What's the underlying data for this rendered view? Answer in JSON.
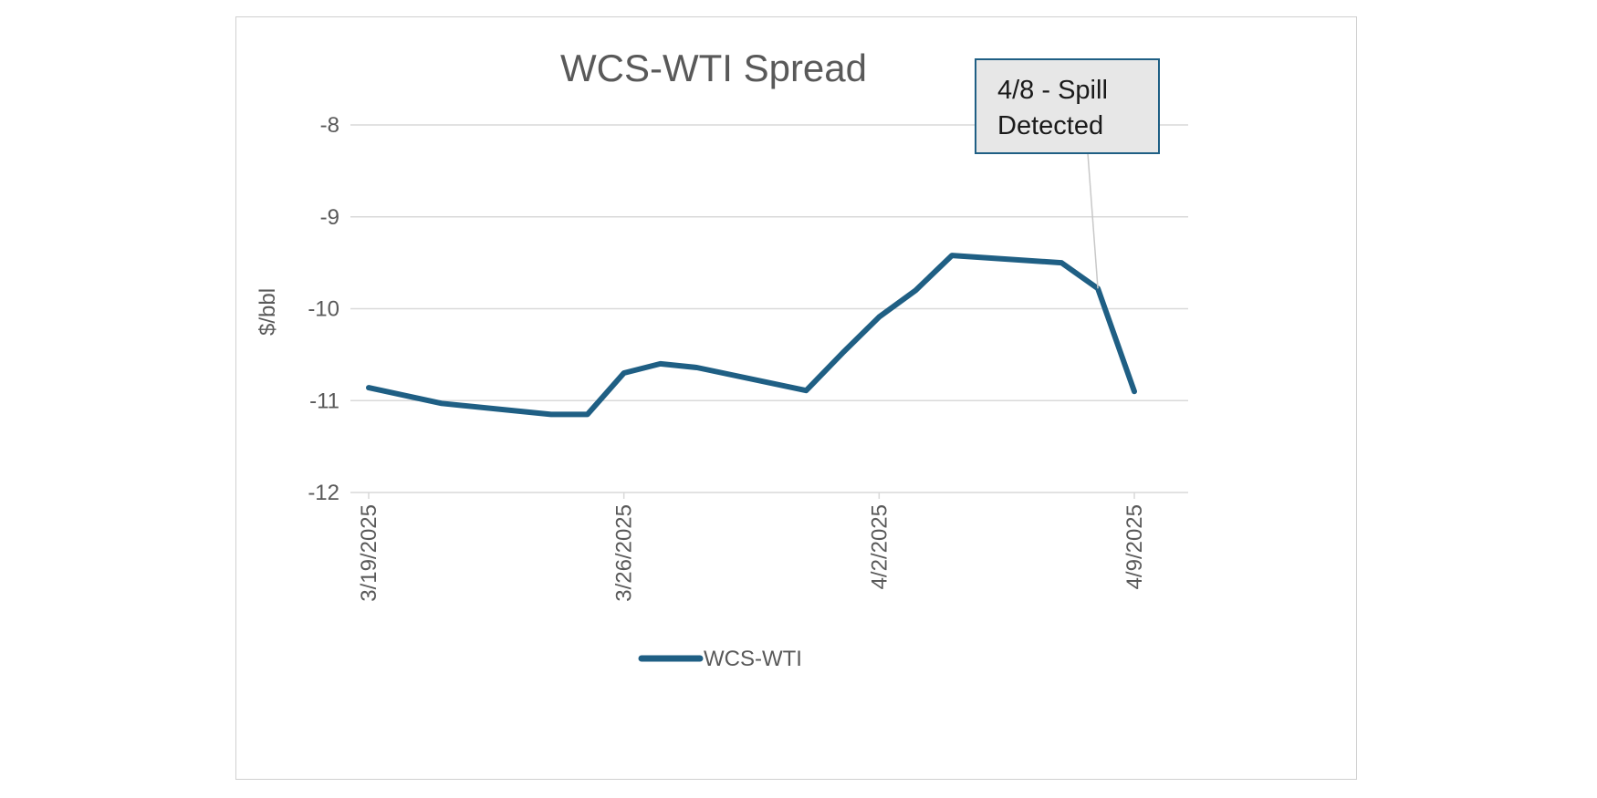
{
  "chart_data": {
    "type": "line",
    "title": "WCS-WTI Spread",
    "ylabel": "$/bbl",
    "xlabel": "",
    "ylim": [
      -12,
      -8
    ],
    "y_ticks": [
      -8,
      -9,
      -10,
      -11,
      -12
    ],
    "x_tick_labels": [
      "3/19/2025",
      "3/26/2025",
      "4/2/2025",
      "4/9/2025"
    ],
    "x": [
      "3/19/2025",
      "3/21/2025",
      "3/24/2025",
      "3/25/2025",
      "3/26/2025",
      "3/27/2025",
      "3/28/2025",
      "3/31/2025",
      "4/1/2025",
      "4/2/2025",
      "4/3/2025",
      "4/4/2025",
      "4/7/2025",
      "4/8/2025",
      "4/9/2025"
    ],
    "series": [
      {
        "name": "WCS-WTI",
        "values": [
          -10.86,
          -11.03,
          -11.15,
          -11.15,
          -10.7,
          -10.6,
          -10.64,
          -10.89,
          -10.48,
          -10.09,
          -9.8,
          -9.42,
          -9.5,
          -9.78,
          -10.9
        ]
      }
    ],
    "grid": true,
    "legend": "bottom",
    "annotation": {
      "text_lines": [
        "4/8 - Spill",
        "Detected"
      ],
      "target_x": "4/8/2025",
      "target_y": -9.78
    },
    "colors": {
      "series": "#1f5f84",
      "grid": "#d9d9d9",
      "callout_fill": "#e7e7e7",
      "callout_border": "#1f5f84"
    }
  }
}
